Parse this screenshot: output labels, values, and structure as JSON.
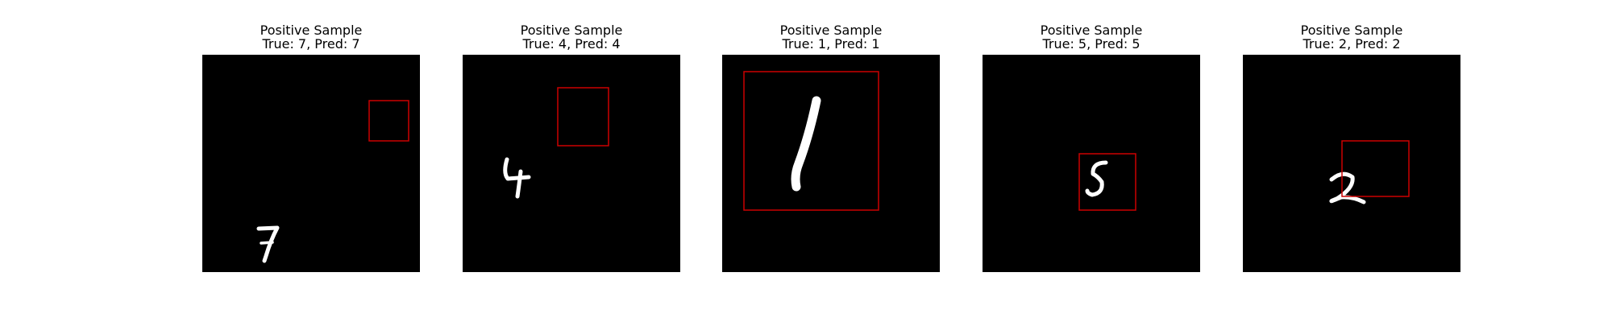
{
  "figure": {
    "background": "#ffffff",
    "box_color": "#cc0000",
    "panels": [
      {
        "title": "Positive Sample",
        "subtitle": "True: 7, Pred: 7",
        "digit_icon": "handwritten-digit-7-icon"
      },
      {
        "title": "Positive Sample",
        "subtitle": "True: 4, Pred: 4",
        "digit_icon": "handwritten-digit-4-icon"
      },
      {
        "title": "Positive Sample",
        "subtitle": "True: 1, Pred: 1",
        "digit_icon": "handwritten-digit-1-icon"
      },
      {
        "title": "Positive Sample",
        "subtitle": "True: 5, Pred: 5",
        "digit_icon": "handwritten-digit-5-icon"
      },
      {
        "title": "Positive Sample",
        "subtitle": "True: 2, Pred: 2",
        "digit_icon": "handwritten-digit-2-icon"
      }
    ]
  }
}
